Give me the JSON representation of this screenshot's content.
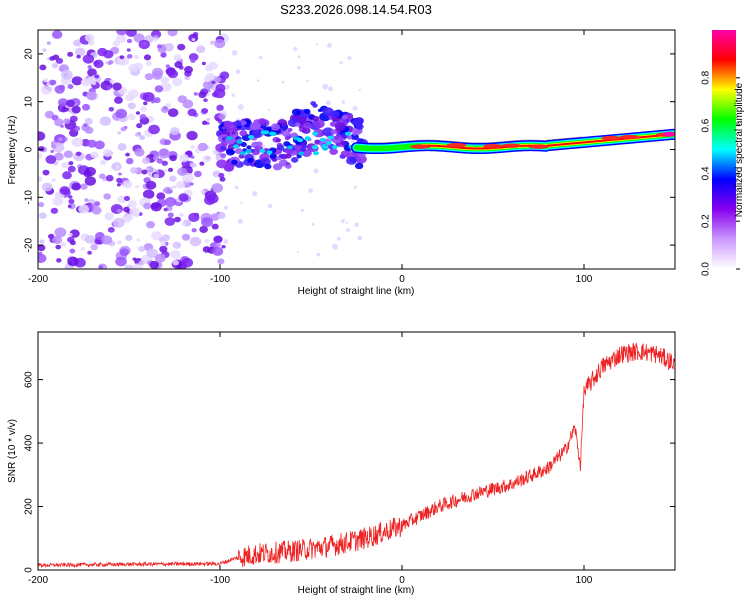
{
  "title": "S233.2026.098.14.54.R03",
  "chart_data": [
    {
      "type": "heatmap",
      "name": "spectrogram",
      "xlabel": "Height of straight line (km)",
      "ylabel": "Frequency (Hz)",
      "xlim": [
        -200,
        150
      ],
      "ylim": [
        -25,
        25
      ],
      "xticks": [
        -200,
        -100,
        0,
        100
      ],
      "yticks": [
        -20,
        -10,
        0,
        10,
        20
      ],
      "colorbar": {
        "label": "Normalized spectral amplitude",
        "range": [
          0,
          1
        ],
        "ticks": [
          "0.0",
          "0.2",
          "0.4",
          "0.6",
          "0.8"
        ],
        "colors": [
          "#ffffff",
          "#cc99ff",
          "#8800ee",
          "#0000ff",
          "#00ffff",
          "#00ff00",
          "#ffff00",
          "#ff0000",
          "#ff00aa"
        ]
      },
      "regions": [
        {
          "x_range": [
            -200,
            -97
          ],
          "freq_range": [
            -25,
            25
          ],
          "amplitude": 0.1,
          "description": "broadband noise"
        },
        {
          "x_range": [
            -100,
            -25
          ],
          "freq_range": [
            -5,
            10
          ],
          "amplitude": 0.25
        },
        {
          "x_range": [
            -20,
            150
          ],
          "freq_center": [
            0,
            3
          ],
          "amplitude": 0.85
        }
      ]
    },
    {
      "type": "line",
      "name": "snr",
      "xlabel": "Height of straight line (km)",
      "ylabel": "SNR (10 * v/v)",
      "xlim": [
        -200,
        150
      ],
      "ylim": [
        0,
        750
      ],
      "xticks": [
        -200,
        -100,
        0,
        100
      ],
      "yticks": [
        0,
        200,
        400,
        600
      ],
      "line_color": "#ee2222",
      "x": [
        -200,
        -150,
        -100,
        -90,
        -80,
        -60,
        -40,
        -20,
        0,
        20,
        40,
        60,
        80,
        90,
        95,
        98,
        100,
        110,
        120,
        130,
        140,
        150
      ],
      "y": [
        15,
        18,
        20,
        40,
        50,
        60,
        75,
        100,
        140,
        200,
        240,
        270,
        320,
        380,
        450,
        330,
        560,
        640,
        680,
        690,
        680,
        650
      ]
    }
  ]
}
